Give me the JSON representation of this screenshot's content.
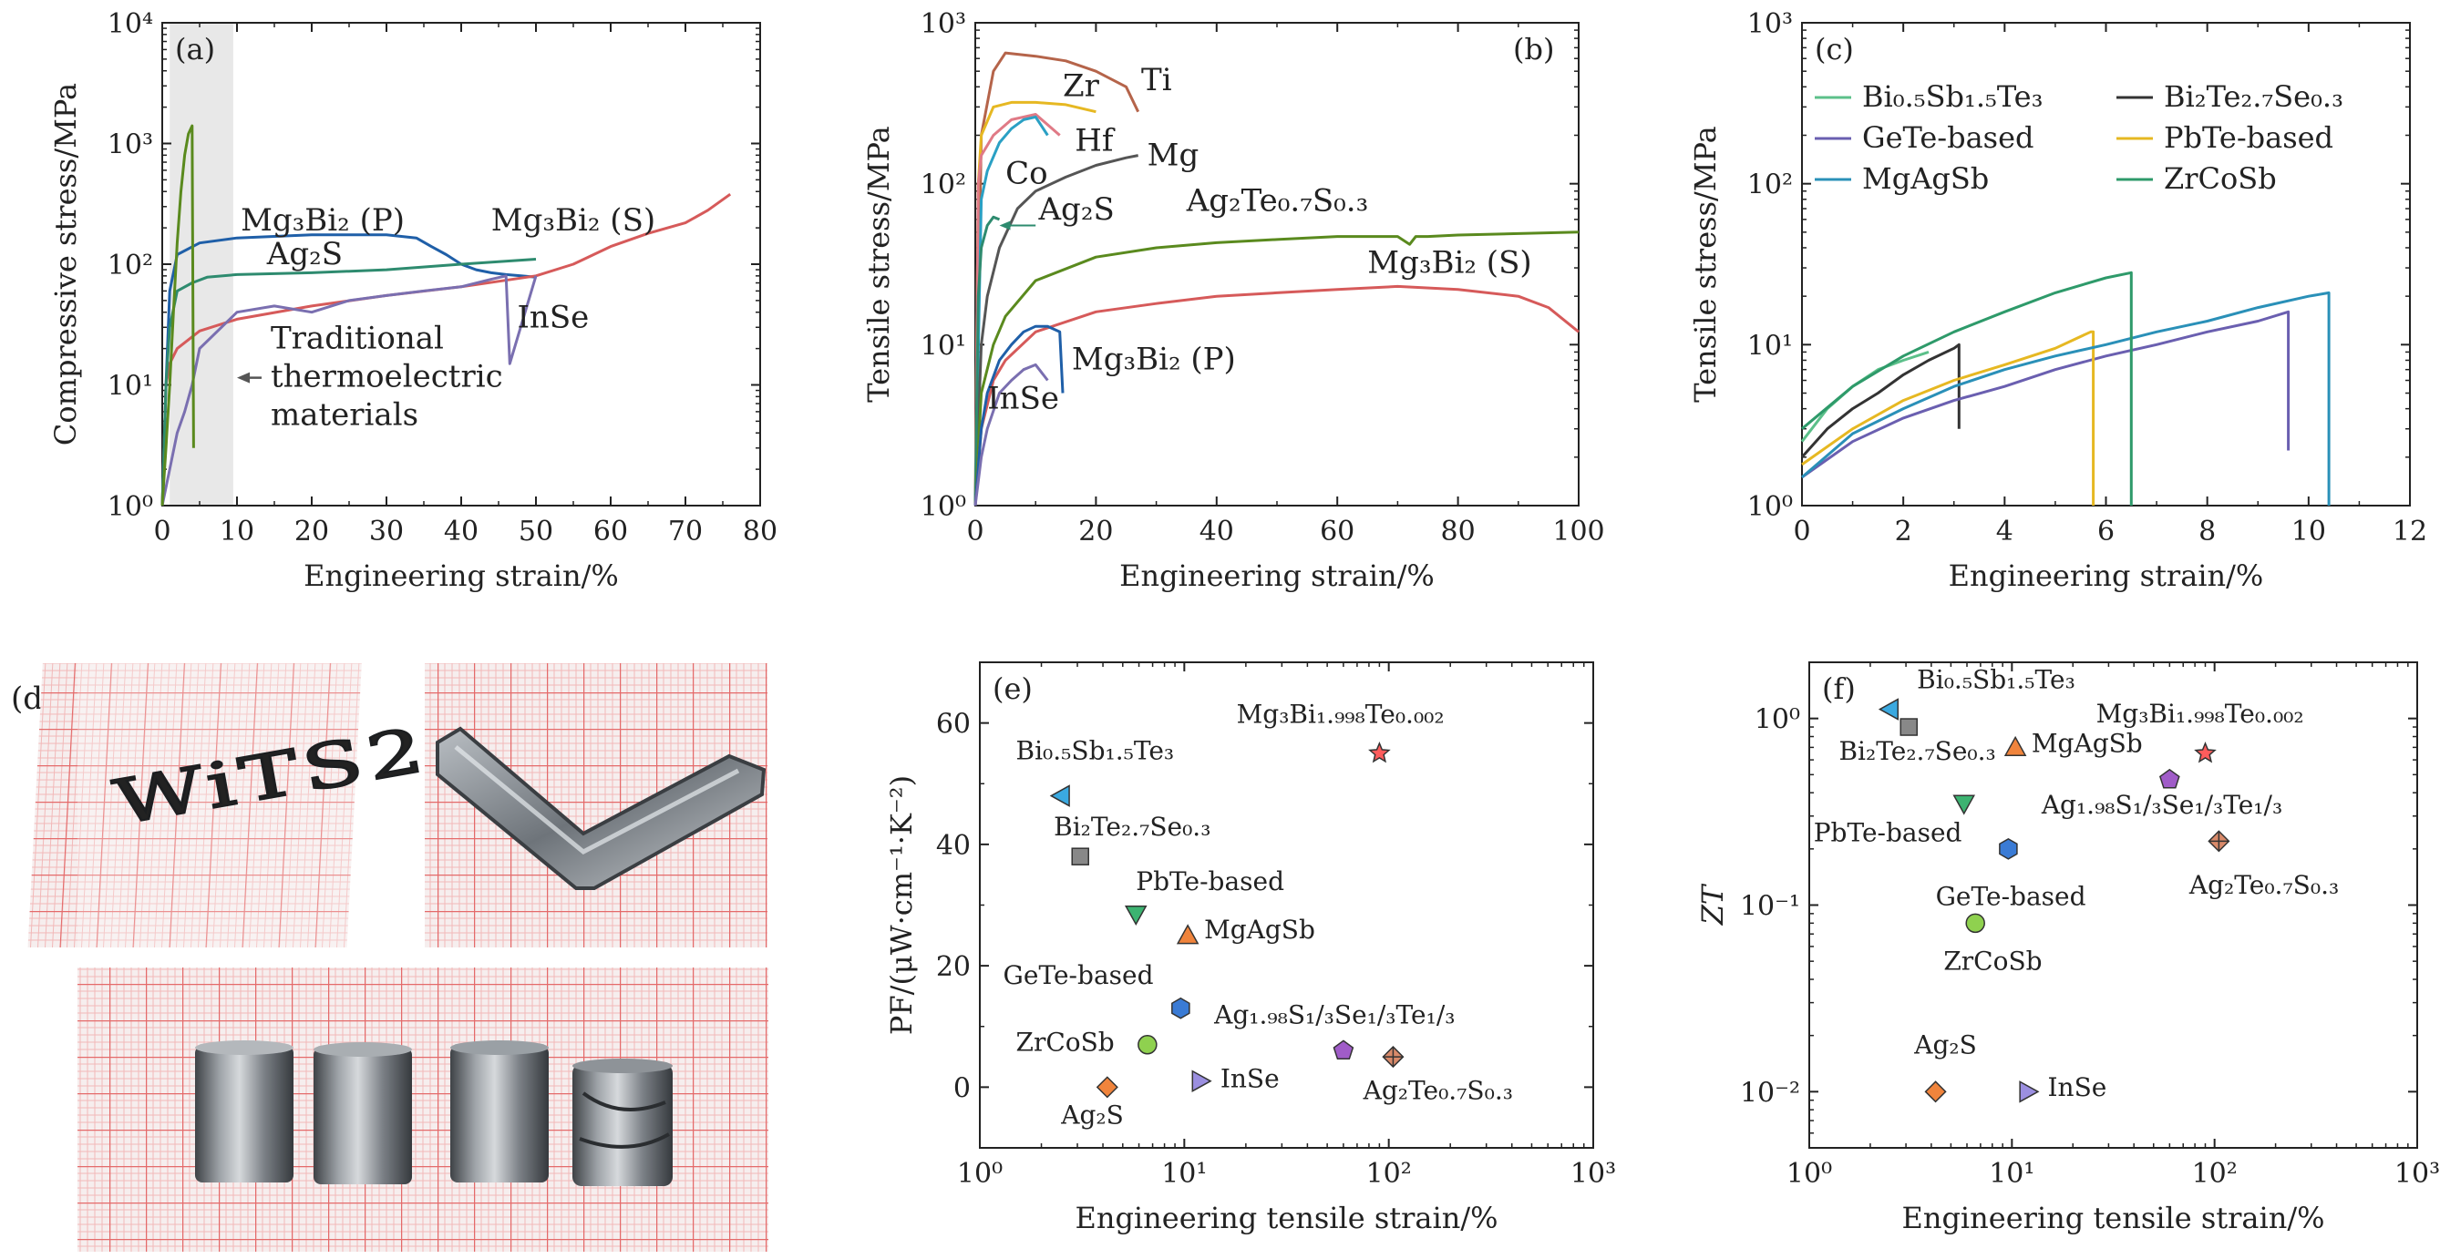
{
  "panel_labels": {
    "a": "(a)",
    "b": "(b)",
    "c": "(c)",
    "d": "(d)",
    "e": "(e)",
    "f": "(f)"
  },
  "colors": {
    "Mg3Bi2_P": "#1f5fa8",
    "Mg3Bi2_S": "#d65a5a",
    "Ag2S": "#2e8b6f",
    "InSe": "#7a6fb0",
    "Ti": "#b5644a",
    "Zr": "#e6b822",
    "Hf": "#e07a86",
    "Co": "#2aa0c4",
    "Mg": "#555555",
    "Ag2Te07S03": "#5a8a1e",
    "BiSbTe": "#5cc08a",
    "BiTeSe": "#333333",
    "GeTe": "#6a5fb0",
    "PbTe": "#e6b822",
    "MgAgSb": "#2a90b8",
    "ZrCoSb": "#2e9a6a",
    "trad": "#e8e8e8",
    "sc_BiSbTe": "#3aa9e0",
    "sc_BiTeSe": "#888888",
    "sc_PbTe": "#3cb371",
    "sc_MgAgSb": "#f0843c",
    "sc_GeTe": "#3a7bd5",
    "sc_ZrCoSb": "#8fd14f",
    "sc_Ag2S": "#f0843c",
    "sc_InSe": "#9b8fe0",
    "sc_AgSSeTe": "#a05cc8",
    "sc_AgTeS": "#d98a6a",
    "sc_MgBiTe": "#ff5c5c"
  },
  "chart_data": [
    {
      "id": "a",
      "type": "line",
      "xlabel": "Engineering strain/%",
      "ylabel": "Compressive stress/MPa",
      "xlim": [
        0,
        80
      ],
      "ylim": [
        1,
        10000
      ],
      "yscale": "log",
      "xticks": [
        "0",
        "10",
        "20",
        "30",
        "40",
        "50",
        "60",
        "70",
        "80"
      ],
      "yticks": [
        "10⁰",
        "10¹",
        "10²",
        "10³",
        "10⁴"
      ],
      "shaded_region": [
        1,
        9.5
      ],
      "annotation": {
        "lines": [
          "Traditional",
          "thermoelectric",
          "materials"
        ],
        "arrow_to_x": 10
      },
      "series": [
        {
          "name": "Mg₃Bi₂ (P)",
          "color_key": "Mg3Bi2_P",
          "x": [
            0,
            0.5,
            1,
            2,
            5,
            10,
            20,
            30,
            34,
            36,
            38,
            40,
            42,
            44,
            46,
            48,
            50
          ],
          "y": [
            1,
            10,
            60,
            120,
            150,
            165,
            175,
            175,
            165,
            140,
            120,
            100,
            90,
            85,
            82,
            80,
            78
          ]
        },
        {
          "name": "Mg₃Bi₂ (S)",
          "color_key": "Mg3Bi2_S",
          "x": [
            0,
            0.5,
            1,
            2,
            5,
            10,
            20,
            30,
            40,
            50,
            55,
            60,
            65,
            70,
            73,
            76
          ],
          "y": [
            1,
            10,
            15,
            20,
            28,
            35,
            45,
            55,
            65,
            80,
            100,
            140,
            180,
            220,
            280,
            380
          ]
        },
        {
          "name": "Ag₂S",
          "color_key": "Ag2S",
          "x": [
            0,
            0.5,
            1,
            2,
            4,
            6,
            10,
            20,
            30,
            40,
            50
          ],
          "y": [
            1,
            10,
            30,
            60,
            70,
            78,
            82,
            85,
            90,
            100,
            110
          ]
        },
        {
          "name": "InSe",
          "color_key": "InSe",
          "x": [
            0,
            1,
            2,
            3,
            4,
            5,
            10,
            15,
            20,
            25,
            30,
            35,
            40,
            44,
            46,
            46.5,
            50
          ],
          "y": [
            1,
            2,
            4,
            6,
            10,
            20,
            40,
            45,
            40,
            50,
            55,
            60,
            65,
            75,
            80,
            15,
            80
          ]
        },
        {
          "name": "",
          "color_key": "Ag2Te07S03",
          "x": [
            0,
            0.5,
            1,
            1.5,
            2,
            2.5,
            3,
            3.5,
            4,
            4.2
          ],
          "y": [
            1,
            3,
            10,
            40,
            150,
            400,
            800,
            1200,
            1400,
            3
          ]
        }
      ],
      "labels": [
        {
          "text": "Mg₃Bi₂ (P)",
          "color_key": "Mg3Bi2_P",
          "x": 10.5,
          "y": 190
        },
        {
          "text": "Mg₃Bi₂ (S)",
          "color_key": "Mg3Bi2_S",
          "x": 44,
          "y": 190
        },
        {
          "text": "Ag₂S",
          "color_key": "Ag2S",
          "x": 14,
          "y": 100
        },
        {
          "text": "InSe",
          "color_key": "InSe",
          "x": 47.5,
          "y": 30
        }
      ]
    },
    {
      "id": "b",
      "type": "line",
      "xlabel": "Engineering strain/%",
      "ylabel": "Tensile stress/MPa",
      "xlim": [
        0,
        100
      ],
      "ylim": [
        1,
        1000
      ],
      "yscale": "log",
      "xticks": [
        "0",
        "20",
        "40",
        "60",
        "80",
        "100"
      ],
      "yticks": [
        "10⁰",
        "10¹",
        "10²",
        "10³"
      ],
      "series": [
        {
          "name": "Ti",
          "color_key": "Ti",
          "x": [
            0,
            1,
            3,
            5,
            10,
            15,
            20,
            25,
            27
          ],
          "y": [
            1,
            200,
            500,
            650,
            620,
            580,
            500,
            400,
            280
          ]
        },
        {
          "name": "Zr",
          "color_key": "Zr",
          "x": [
            0,
            0.5,
            1,
            3,
            6,
            10,
            15,
            20
          ],
          "y": [
            1,
            100,
            200,
            300,
            320,
            320,
            310,
            280
          ]
        },
        {
          "name": "Hf",
          "color_key": "Hf",
          "x": [
            0,
            0.5,
            1,
            3,
            6,
            10,
            14
          ],
          "y": [
            1,
            100,
            150,
            200,
            250,
            270,
            200
          ]
        },
        {
          "name": "Co",
          "color_key": "Co",
          "x": [
            0,
            1,
            2,
            4,
            6,
            8,
            10,
            12
          ],
          "y": [
            1,
            80,
            120,
            180,
            220,
            250,
            260,
            200
          ]
        },
        {
          "name": "Mg",
          "color_key": "Mg",
          "x": [
            0,
            1,
            2,
            4,
            7,
            10,
            15,
            20,
            25,
            27
          ],
          "y": [
            1,
            10,
            20,
            40,
            70,
            90,
            110,
            130,
            145,
            150
          ]
        },
        {
          "name": "Ag₂S",
          "color_key": "Ag2S",
          "x": [
            0,
            0.5,
            1,
            2,
            3,
            4
          ],
          "y": [
            1,
            20,
            40,
            55,
            62,
            60
          ]
        },
        {
          "name": "Ag₂Te₀.₇S₀.₃",
          "color_key": "Ag2Te07S03",
          "x": [
            0,
            1,
            3,
            5,
            10,
            20,
            30,
            40,
            50,
            60,
            70,
            72,
            73,
            75,
            80,
            90,
            100
          ],
          "y": [
            1,
            5,
            10,
            15,
            25,
            35,
            40,
            43,
            45,
            47,
            47,
            42,
            47,
            47,
            48,
            49,
            50
          ]
        },
        {
          "name": "Mg₃Bi₂ (S)",
          "color_key": "Mg3Bi2_S",
          "x": [
            0,
            1,
            3,
            5,
            10,
            20,
            30,
            40,
            50,
            60,
            70,
            80,
            90,
            95,
            100
          ],
          "y": [
            1,
            3,
            6,
            8,
            12,
            16,
            18,
            20,
            21,
            22,
            23,
            22,
            20,
            17,
            12
          ]
        },
        {
          "name": "Mg₃Bi₂ (P)",
          "color_key": "Mg3Bi2_P",
          "x": [
            0,
            1,
            2,
            4,
            6,
            8,
            10,
            12,
            14,
            14.5
          ],
          "y": [
            1,
            3,
            5,
            8,
            10,
            12,
            13,
            13,
            12,
            5
          ]
        },
        {
          "name": "InSe",
          "color_key": "InSe",
          "x": [
            0,
            1,
            2,
            4,
            6,
            8,
            10,
            12
          ],
          "y": [
            1,
            2,
            3,
            5,
            6,
            7,
            7.5,
            6
          ]
        }
      ],
      "labels": [
        {
          "text": "Ti",
          "color_key": "Ti",
          "x": 27.5,
          "y": 380
        },
        {
          "text": "Zr",
          "color_key": "Zr",
          "x": 14.5,
          "y": 350
        },
        {
          "text": "Hf",
          "color_key": "Hf",
          "x": 16.5,
          "y": 160
        },
        {
          "text": "Co",
          "color_key": "Co",
          "x": 5,
          "y": 100
        },
        {
          "text": "Mg",
          "color_key": "Mg",
          "x": 28.5,
          "y": 130
        },
        {
          "text": "Ag₂S",
          "color_key": "Ag2S",
          "x": 10.5,
          "y": 60
        },
        {
          "text": "Ag₂Te₀.₇S₀.₃",
          "color_key": "Ag2Te07S03",
          "x": 35,
          "y": 68
        },
        {
          "text": "Mg₃Bi₂ (S)",
          "color_key": "Mg3Bi2_S",
          "x": 65,
          "y": 28
        },
        {
          "text": "Mg₃Bi₂ (P)",
          "color_key": "Mg3Bi2_P",
          "x": 16,
          "y": 7
        },
        {
          "text": "InSe",
          "color_key": "InSe",
          "x": 2,
          "y": 4
        }
      ]
    },
    {
      "id": "c",
      "type": "line",
      "xlabel": "Engineering strain/%",
      "ylabel": "Tensile stress/MPa",
      "xlim": [
        0,
        12
      ],
      "ylim": [
        1,
        1000
      ],
      "yscale": "log",
      "xticks": [
        "0",
        "2",
        "4",
        "6",
        "8",
        "10",
        "12"
      ],
      "yticks": [
        "10⁰",
        "10¹",
        "10²",
        "10³"
      ],
      "legend": [
        "Bi₀.₅Sb₁.₅Te₃",
        "Bi₂Te₂.₇Se₀.₃",
        "GeTe-based",
        "PbTe-based",
        "MgAgSb",
        "ZrCoSb"
      ],
      "legend_position": "top",
      "series": [
        {
          "name": "Bi₀.₅Sb₁.₅Te₃",
          "color_key": "BiSbTe",
          "x": [
            0,
            0.5,
            1,
            1.5,
            2,
            2.5
          ],
          "y": [
            2.5,
            4,
            5.5,
            7,
            8,
            9
          ]
        },
        {
          "name": "Bi₂Te₂.₇Se₀.₃",
          "color_key": "BiTeSe",
          "x": [
            0,
            0.5,
            1,
            1.5,
            2,
            2.5,
            3,
            3.1,
            3.1
          ],
          "y": [
            2,
            3,
            4,
            5,
            6.5,
            8,
            9.5,
            10,
            3
          ]
        },
        {
          "name": "GeTe-based",
          "color_key": "GeTe",
          "x": [
            0,
            1,
            2,
            3,
            4,
            5,
            6,
            7,
            8,
            9,
            9.6,
            9.6
          ],
          "y": [
            1.5,
            2.5,
            3.5,
            4.5,
            5.5,
            7,
            8.5,
            10,
            12,
            14,
            16,
            2.2
          ]
        },
        {
          "name": "PbTe-based",
          "color_key": "PbTe",
          "x": [
            0,
            1,
            2,
            3,
            4,
            5,
            5.7,
            5.75,
            5.75
          ],
          "y": [
            1.8,
            3,
            4.5,
            6,
            7.5,
            9.5,
            12,
            12,
            1
          ]
        },
        {
          "name": "MgAgSb",
          "color_key": "MgAgSb",
          "x": [
            0,
            1,
            2,
            3,
            4,
            5,
            6,
            7,
            8,
            9,
            10,
            10.4,
            10.4
          ],
          "y": [
            1.5,
            2.8,
            4,
            5.5,
            7,
            8.5,
            10,
            12,
            14,
            17,
            20,
            21,
            1
          ]
        },
        {
          "name": "ZrCoSb",
          "color_key": "ZrCoSb",
          "x": [
            0,
            1,
            2,
            3,
            4,
            5,
            6,
            6.5,
            6.5
          ],
          "y": [
            3,
            5.5,
            8.5,
            12,
            16,
            21,
            26,
            28,
            1
          ]
        }
      ]
    },
    {
      "id": "e",
      "type": "scatter",
      "xlabel": "Engineering tensile strain/%",
      "ylabel": "PF/(μW·cm⁻¹·K⁻²)",
      "xlim": [
        1,
        1000
      ],
      "xscale": "log",
      "ylim": [
        -10,
        70
      ],
      "xticks": [
        "10⁰",
        "10¹",
        "10²",
        "10³"
      ],
      "yticks": [
        "0",
        "20",
        "40",
        "60"
      ],
      "points": [
        {
          "name": "Bi₀.₅Sb₁.₅Te₃",
          "marker": "tri-left",
          "color_key": "sc_BiSbTe",
          "x": 2.5,
          "y": 48,
          "lx": 1.5,
          "ly": 54
        },
        {
          "name": "Bi₂Te₂.₇Se₀.₃",
          "marker": "square",
          "color_key": "sc_BiTeSe",
          "x": 3.1,
          "y": 38,
          "lx": 2.3,
          "ly": 41.5
        },
        {
          "name": "PbTe-based",
          "marker": "tri-down",
          "color_key": "sc_PbTe",
          "x": 5.8,
          "y": 28.5,
          "lx": 5.8,
          "ly": 32.5
        },
        {
          "name": "MgAgSb",
          "marker": "tri-up",
          "color_key": "sc_MgAgSb",
          "x": 10.4,
          "y": 25,
          "lx": 12.5,
          "ly": 24.5
        },
        {
          "name": "GeTe-based",
          "marker": "hexagon",
          "color_key": "sc_GeTe",
          "x": 9.6,
          "y": 13,
          "lx": 1.3,
          "ly": 17
        },
        {
          "name": "Ag₁.₉₈S₁/₃Se₁/₃Te₁/₃",
          "marker": "pentagon",
          "color_key": "sc_AgSSeTe",
          "x": 60,
          "y": 6,
          "lx": 14,
          "ly": 10.5
        },
        {
          "name": "ZrCoSb",
          "marker": "circle",
          "color_key": "sc_ZrCoSb",
          "x": 6.6,
          "y": 7,
          "lx": 1.5,
          "ly": 6
        },
        {
          "name": "Ag₂S",
          "marker": "diamond",
          "color_key": "sc_Ag2S",
          "x": 4.2,
          "y": 0,
          "lx": 2.5,
          "ly": -6
        },
        {
          "name": "InSe",
          "marker": "tri-right",
          "color_key": "sc_InSe",
          "x": 12,
          "y": 1,
          "lx": 15,
          "ly": 0
        },
        {
          "name": "Ag₂Te₀.₇S₀.₃",
          "marker": "diamond-plus",
          "color_key": "sc_AgTeS",
          "x": 105,
          "y": 5,
          "lx": 75,
          "ly": -2
        },
        {
          "name": "Mg₃Bi₁.₉₉₈Te₀.₀₀₂",
          "marker": "star",
          "color_key": "sc_MgBiTe",
          "x": 90,
          "y": 55,
          "lx": 18,
          "ly": 60
        }
      ]
    },
    {
      "id": "f",
      "type": "scatter",
      "xlabel": "Engineering tensile strain/%",
      "ylabel": "ZT",
      "xlim": [
        1,
        1000
      ],
      "xscale": "log",
      "ylim": [
        0.005,
        2
      ],
      "yscale": "log",
      "xticks": [
        "10⁰",
        "10¹",
        "10²",
        "10³"
      ],
      "yticks": [
        "10⁻²",
        "10⁻¹",
        "10⁰"
      ],
      "points": [
        {
          "name": "Bi₀.₅Sb₁.₅Te₃",
          "marker": "tri-left",
          "color_key": "sc_BiSbTe",
          "x": 2.5,
          "y": 1.12,
          "lx": 3.4,
          "ly": 1.45
        },
        {
          "name": "Bi₂Te₂.₇Se₀.₃",
          "marker": "square",
          "color_key": "sc_BiTeSe",
          "x": 3.1,
          "y": 0.9,
          "lx": 1.4,
          "ly": 0.6
        },
        {
          "name": "MgAgSb",
          "marker": "tri-up",
          "color_key": "sc_MgAgSb",
          "x": 10.4,
          "y": 0.7,
          "lx": 12.5,
          "ly": 0.66
        },
        {
          "name": "Mg₃Bi₁.₉₉₈Te₀.₀₀₂",
          "marker": "star",
          "color_key": "sc_MgBiTe",
          "x": 90,
          "y": 0.65,
          "lx": 26,
          "ly": 0.95
        },
        {
          "name": "Ag₁.₉₈S₁/₃Se₁/₃Te₁/₃",
          "marker": "pentagon",
          "color_key": "sc_AgSSeTe",
          "x": 60,
          "y": 0.47,
          "lx": 14,
          "ly": 0.31
        },
        {
          "name": "PbTe-based",
          "marker": "tri-down",
          "color_key": "sc_PbTe",
          "x": 5.8,
          "y": 0.35,
          "lx": 1.05,
          "ly": 0.22
        },
        {
          "name": "Ag₂Te₀.₇S₀.₃",
          "marker": "diamond-plus",
          "color_key": "sc_AgTeS",
          "x": 105,
          "y": 0.22,
          "lx": 75,
          "ly": 0.115
        },
        {
          "name": "GeTe-based",
          "marker": "hexagon",
          "color_key": "sc_GeTe",
          "x": 9.6,
          "y": 0.2,
          "lx": 4.2,
          "ly": 0.1
        },
        {
          "name": "ZrCoSb",
          "marker": "circle",
          "color_key": "sc_ZrCoSb",
          "x": 6.6,
          "y": 0.08,
          "lx": 4.6,
          "ly": 0.045
        },
        {
          "name": "Ag₂S",
          "marker": "diamond",
          "color_key": "sc_Ag2S",
          "x": 4.2,
          "y": 0.01,
          "lx": 3.3,
          "ly": 0.016
        },
        {
          "name": "InSe",
          "marker": "tri-right",
          "color_key": "sc_InSe",
          "x": 12,
          "y": 0.01,
          "lx": 15,
          "ly": 0.0095
        }
      ]
    }
  ],
  "photos": {
    "top_left_text": "WiTS2"
  }
}
